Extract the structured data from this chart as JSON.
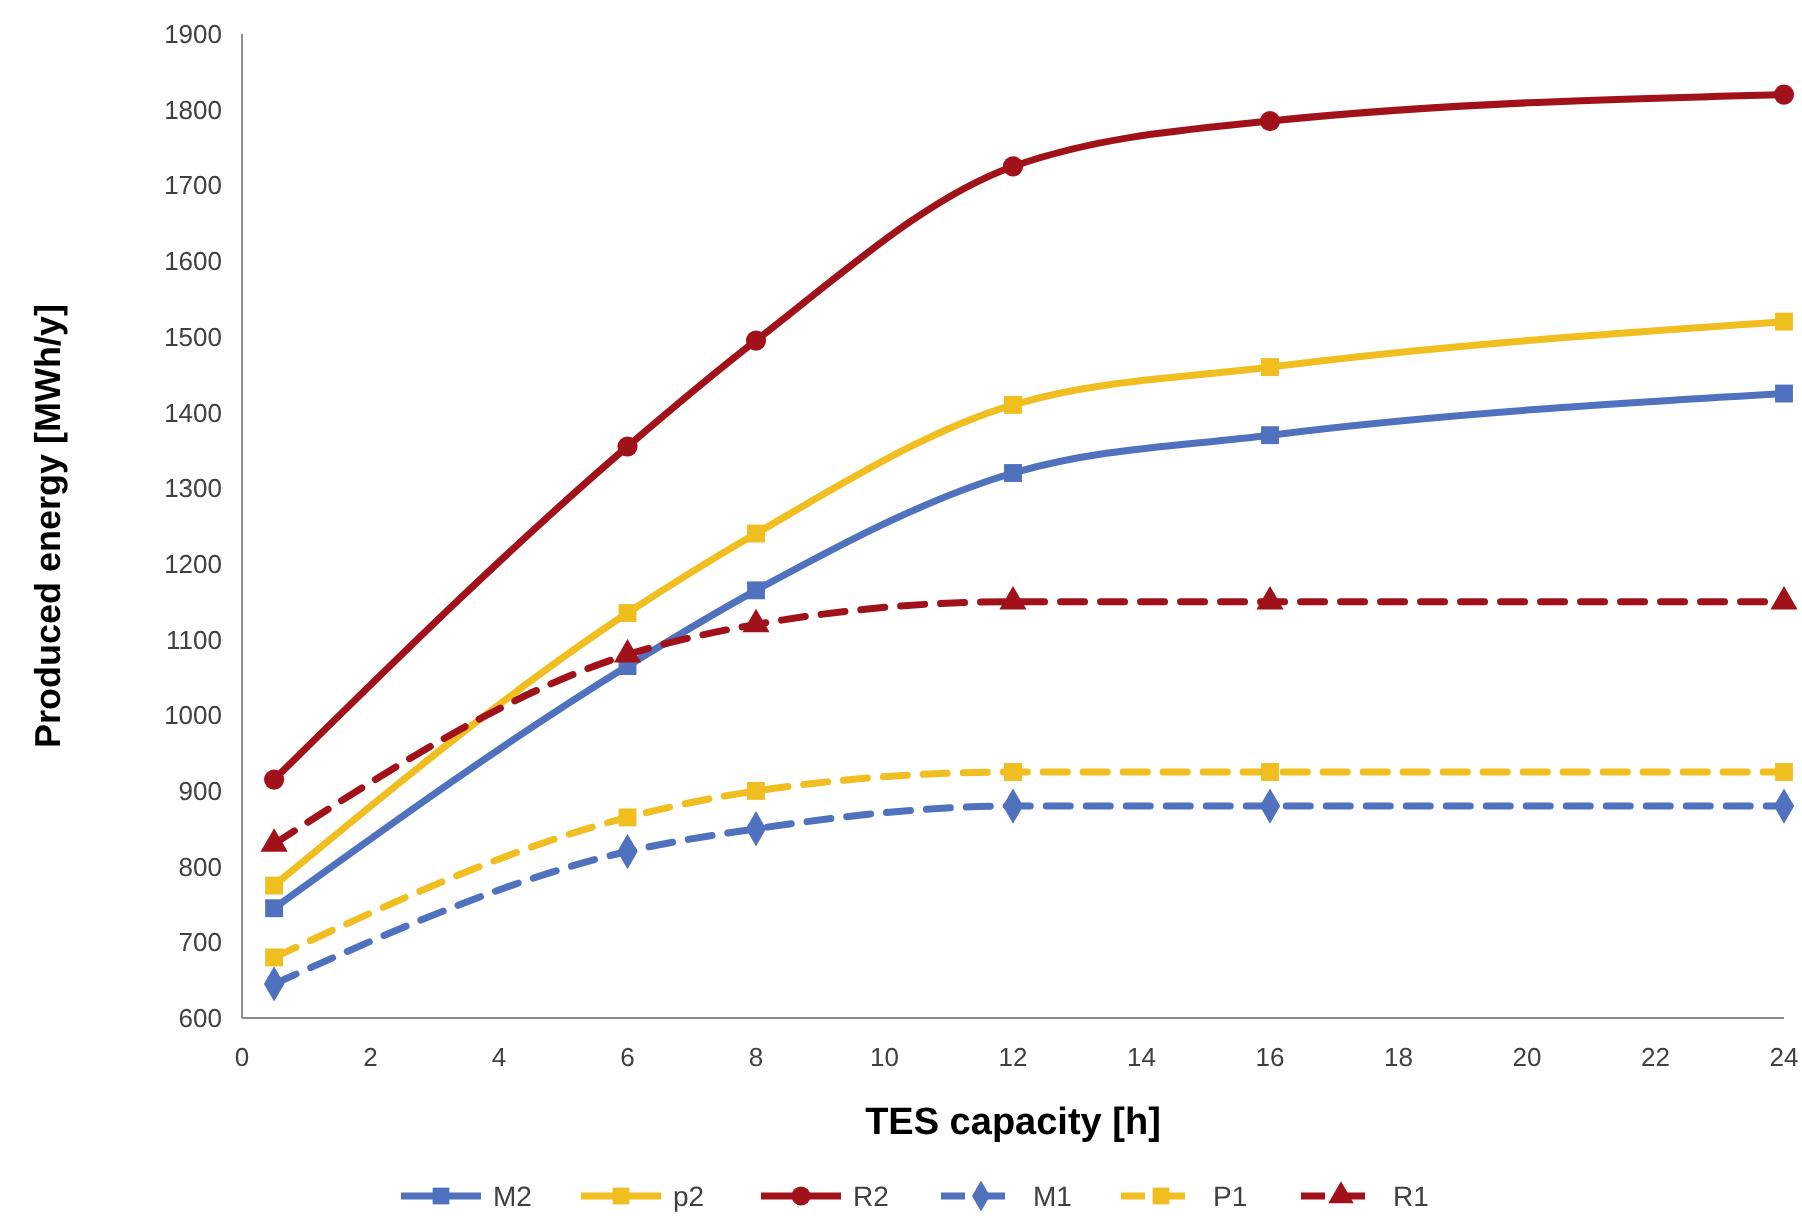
{
  "chart_data": {
    "type": "line",
    "xlabel": "TES capacity [h]",
    "ylabel": "Produced energy [MWh/y]",
    "x": [
      0.5,
      6,
      8,
      12,
      16,
      24
    ],
    "xlim": [
      0,
      24
    ],
    "xticks": [
      0,
      2,
      4,
      6,
      8,
      10,
      12,
      14,
      16,
      18,
      20,
      22,
      24
    ],
    "ylim": [
      600,
      1900
    ],
    "yticks": [
      600,
      700,
      800,
      900,
      1000,
      1100,
      1200,
      1300,
      1400,
      1500,
      1600,
      1700,
      1800,
      1900
    ],
    "grid": false,
    "legend": "bottom",
    "series": [
      {
        "name": "M2",
        "color": "#4f71be",
        "marker": "square",
        "line_style": "solid",
        "values": [
          745,
          1065,
          1165,
          1320,
          1370,
          1425
        ]
      },
      {
        "name": "p2",
        "color": "#f0be1e",
        "marker": "square",
        "line_style": "solid",
        "values": [
          775,
          1135,
          1240,
          1410,
          1460,
          1520
        ]
      },
      {
        "name": "R2",
        "color": "#a0111a",
        "marker": "circle",
        "line_style": "solid",
        "values": [
          915,
          1355,
          1495,
          1725,
          1785,
          1820
        ]
      },
      {
        "name": "M1",
        "color": "#4f71be",
        "marker": "diamond",
        "line_style": "dashed",
        "values": [
          645,
          820,
          850,
          880,
          880,
          880
        ]
      },
      {
        "name": "P1",
        "color": "#f0be1e",
        "marker": "square",
        "line_style": "dashed",
        "values": [
          680,
          865,
          900,
          925,
          925,
          925
        ]
      },
      {
        "name": "R1",
        "color": "#a0111a",
        "marker": "triangle",
        "line_style": "dashed",
        "values": [
          830,
          1080,
          1120,
          1150,
          1150,
          1150
        ]
      }
    ]
  }
}
